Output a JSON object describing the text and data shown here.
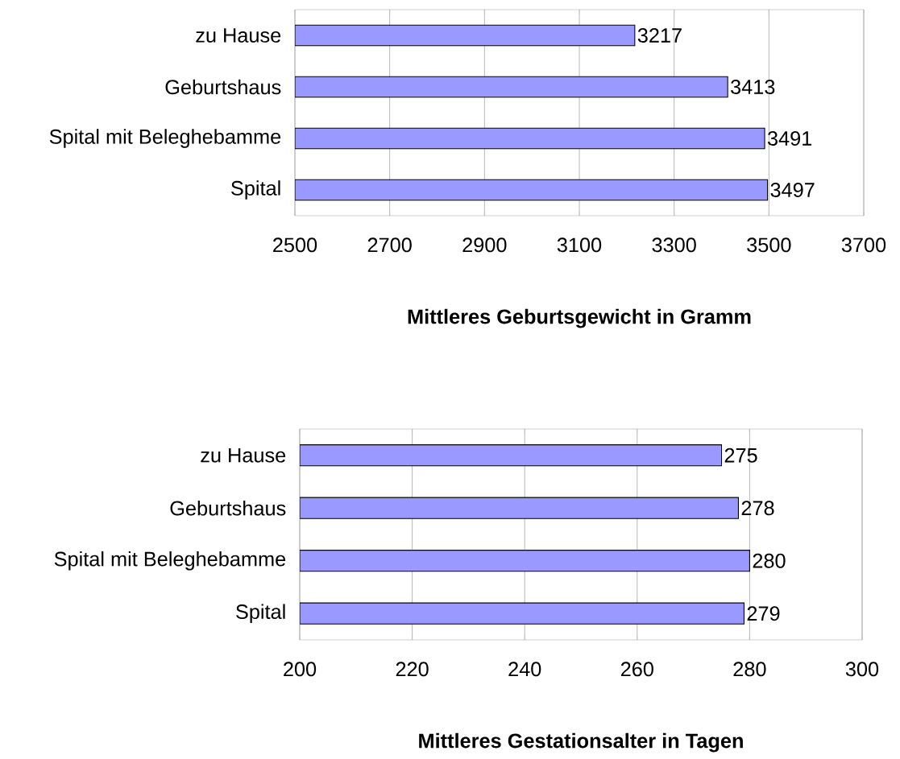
{
  "chart_data": [
    {
      "type": "bar",
      "orientation": "horizontal",
      "xlabel": "**Mittleres Geburtsgewicht in Gramm**",
      "categories": [
        "zu Hause",
        "Geburtshaus",
        "Spital mit Beleghebamme",
        "Spital"
      ],
      "values": [
        3217,
        3413,
        3491,
        3497
      ],
      "color": "#9999ff",
      "data_labels": true,
      "xlim": [
        2500,
        3700
      ],
      "xticks": [
        2500,
        2700,
        2900,
        3100,
        3300,
        3500,
        3700
      ],
      "grid": "x"
    },
    {
      "type": "bar",
      "orientation": "horizontal",
      "xlabel": "**Mittleres Gestationsalter in Tagen**",
      "categories": [
        "zu Hause",
        "Geburtshaus",
        "Spital mit Beleghebamme",
        "Spital"
      ],
      "values": [
        275,
        278,
        280,
        279
      ],
      "color": "#9999ff",
      "data_labels": true,
      "xlim": [
        200,
        300
      ],
      "xticks": [
        200,
        220,
        240,
        260,
        280,
        300
      ],
      "grid": "x"
    }
  ]
}
